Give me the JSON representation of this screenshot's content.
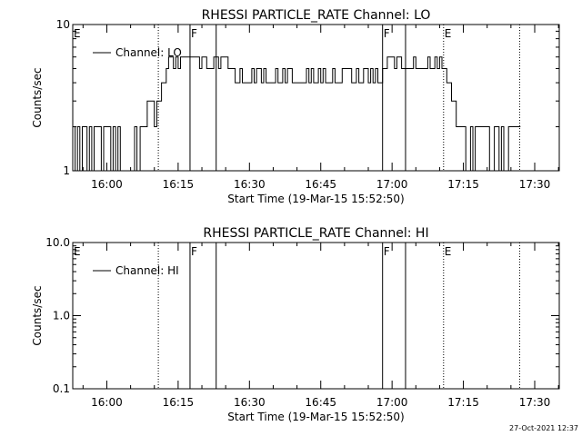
{
  "footer_stamp": "27-Oct-2021 12:37",
  "chart_data": [
    {
      "type": "line",
      "title": "RHESSI PARTICLE_RATE Channel: LO",
      "xlabel": "Start Time (19-Mar-15 15:52:50)",
      "ylabel": "Counts/sec",
      "y_scale": "log",
      "ylim": [
        1,
        10
      ],
      "y_ticks": [
        "1",
        "10"
      ],
      "x_tick_labels": [
        "16:00",
        "16:15",
        "16:30",
        "16:45",
        "17:00",
        "17:15",
        "17:30"
      ],
      "legend": {
        "placement": "top-left",
        "label": "Channel: LO"
      },
      "event_markers": [
        {
          "time": "15:52:50",
          "label": "E",
          "style": "dotted"
        },
        {
          "time": "16:10:50",
          "label": "",
          "style": "dotted"
        },
        {
          "time": "16:17:30",
          "label": "F",
          "style": "solid"
        },
        {
          "time": "16:23:00",
          "label": "",
          "style": "solid"
        },
        {
          "time": "16:58:00",
          "label": "F",
          "style": "solid"
        },
        {
          "time": "17:02:50",
          "label": "",
          "style": "solid"
        },
        {
          "time": "17:10:50",
          "label": "E",
          "style": "dotted"
        },
        {
          "time": "17:26:50",
          "label": "",
          "style": "dotted"
        }
      ],
      "series": [
        {
          "segments": [
            {
              "from": "15:52:50",
              "to": "16:07:00",
              "pattern": "alternate",
              "values": [
                2,
                1
              ]
            },
            {
              "from": "16:07:00",
              "to": "16:10:30",
              "pattern": "alternate",
              "values": [
                3,
                2
              ]
            },
            {
              "from": "16:10:30",
              "to": "16:13:00",
              "pattern": "ramp",
              "values": [
                3,
                5
              ]
            },
            {
              "from": "16:13:00",
              "to": "16:27:00",
              "pattern": "alternate",
              "values": [
                6,
                5
              ]
            },
            {
              "from": "16:27:00",
              "to": "16:37:00",
              "pattern": "alternate",
              "values": [
                5,
                4
              ]
            },
            {
              "from": "16:37:00",
              "to": "16:47:00",
              "pattern": "alternate",
              "values": [
                5,
                4
              ]
            },
            {
              "from": "16:47:00",
              "to": "16:58:00",
              "pattern": "alternate",
              "values": [
                5,
                4
              ]
            },
            {
              "from": "16:58:00",
              "to": "17:10:30",
              "pattern": "alternate",
              "values": [
                5,
                6
              ]
            },
            {
              "from": "17:10:30",
              "to": "17:14:00",
              "pattern": "ramp",
              "values": [
                5,
                2
              ]
            },
            {
              "from": "17:14:00",
              "to": "17:26:50",
              "pattern": "alternate",
              "values": [
                2,
                1
              ]
            }
          ]
        }
      ]
    },
    {
      "type": "line",
      "title": "RHESSI PARTICLE_RATE Channel: HI",
      "xlabel": "Start Time (19-Mar-15 15:52:50)",
      "ylabel": "Counts/sec",
      "y_scale": "log",
      "ylim": [
        0.1,
        10
      ],
      "y_ticks": [
        "0.1",
        "1.0",
        "10.0"
      ],
      "x_tick_labels": [
        "16:00",
        "16:15",
        "16:30",
        "16:45",
        "17:00",
        "17:15",
        "17:30"
      ],
      "legend": {
        "placement": "top-left",
        "label": "Channel: HI"
      },
      "event_markers": [
        {
          "time": "15:52:50",
          "label": "E",
          "style": "dotted"
        },
        {
          "time": "16:10:50",
          "label": "",
          "style": "dotted"
        },
        {
          "time": "16:17:30",
          "label": "F",
          "style": "solid"
        },
        {
          "time": "16:23:00",
          "label": "",
          "style": "solid"
        },
        {
          "time": "16:58:00",
          "label": "F",
          "style": "solid"
        },
        {
          "time": "17:02:50",
          "label": "",
          "style": "solid"
        },
        {
          "time": "17:10:50",
          "label": "E",
          "style": "dotted"
        },
        {
          "time": "17:26:50",
          "label": "",
          "style": "dotted"
        }
      ],
      "series": [
        {
          "segments": []
        }
      ]
    }
  ]
}
